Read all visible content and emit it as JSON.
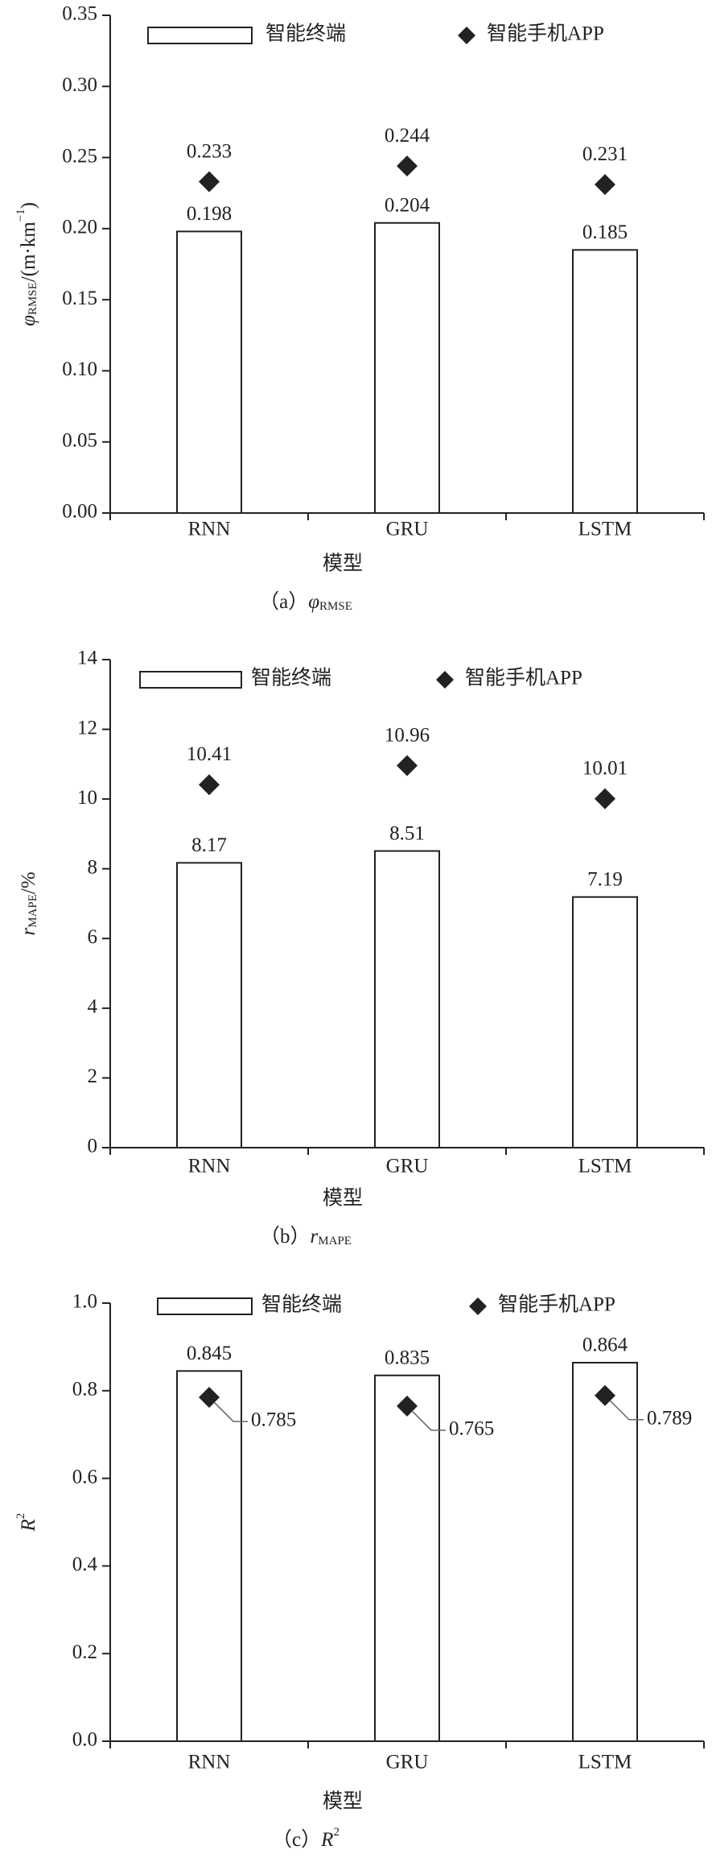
{
  "chart_data": [
    {
      "type": "bar",
      "categories": [
        "RNN",
        "GRU",
        "LSTM"
      ],
      "series": [
        {
          "name": "智能终端",
          "type": "bar",
          "color": "#ffffff",
          "values": [
            0.198,
            0.204,
            0.185
          ]
        },
        {
          "name": "智能手机APP",
          "type": "scatter",
          "color": "#222222",
          "values": [
            0.233,
            0.244,
            0.231
          ]
        }
      ],
      "ylim": [
        0,
        0.35
      ],
      "yticks": [
        {
          "value": 0,
          "label": "0.00"
        },
        0.05,
        {
          "value": 0.1,
          "label": "0.10"
        },
        0.15,
        {
          "value": 0.2,
          "label": "0.20"
        },
        0.25,
        {
          "value": 0.3,
          "label": "0.30"
        },
        0.35
      ],
      "x_label": "模型",
      "y_label": [
        "φ",
        "RMSE",
        "/(m·km",
        "−1",
        ")"
      ],
      "caption": [
        "（a）",
        "φ",
        "RMSE"
      ]
    },
    {
      "type": "bar",
      "categories": [
        "RNN",
        "GRU",
        "LSTM"
      ],
      "series": [
        {
          "name": "智能终端",
          "type": "bar",
          "color": "#ffffff",
          "values": [
            8.17,
            8.51,
            7.19
          ]
        },
        {
          "name": "智能手机APP",
          "type": "scatter",
          "color": "#222222",
          "values": [
            10.41,
            10.96,
            10.01
          ]
        }
      ],
      "ylim": [
        0,
        14
      ],
      "yticks": [
        0,
        2,
        4,
        6,
        8,
        10,
        12,
        14
      ],
      "x_label": "模型",
      "y_label": [
        "r",
        "MAPE",
        "/%"
      ],
      "caption": [
        "（b）",
        "r",
        "MAPE"
      ]
    },
    {
      "type": "bar",
      "categories": [
        "RNN",
        "GRU",
        "LSTM"
      ],
      "series": [
        {
          "name": "智能终端",
          "type": "bar",
          "color": "#ffffff",
          "values": [
            0.845,
            0.835,
            0.864
          ]
        },
        {
          "name": "智能手机APP",
          "type": "scatter",
          "color": "#222222",
          "values": [
            0.785,
            0.765,
            0.789
          ]
        }
      ],
      "ylim": [
        0,
        1
      ],
      "yticks": [
        {
          "value": 0,
          "label": "0.0"
        },
        0.2,
        0.4,
        0.6,
        0.8,
        {
          "value": 1,
          "label": "1.0"
        }
      ],
      "x_label": "模型",
      "y_label": [
        "R",
        "2"
      ],
      "caption": [
        "（c）",
        "R",
        "2"
      ]
    }
  ]
}
